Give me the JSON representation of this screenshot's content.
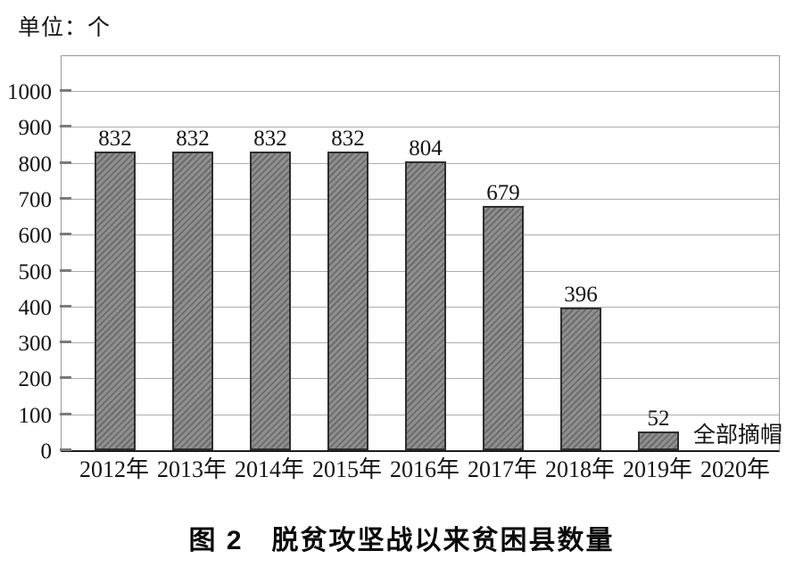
{
  "unit_label": "单位：个",
  "caption": "图 2　脱贫攻坚战以来贫困县数量",
  "chart_data": {
    "type": "bar",
    "title": "图 2　脱贫攻坚战以来贫困县数量",
    "unit_label": "单位：个",
    "categories": [
      "2012年",
      "2013年",
      "2014年",
      "2015年",
      "2016年",
      "2017年",
      "2018年",
      "2019年",
      "2020年"
    ],
    "values": [
      832,
      832,
      832,
      832,
      804,
      679,
      396,
      52,
      0
    ],
    "data_labels": [
      "832",
      "832",
      "832",
      "832",
      "804",
      "679",
      "396",
      "52",
      ""
    ],
    "annotations": [
      {
        "category_index": 8,
        "text": "全部摘帽"
      }
    ],
    "xlabel": "",
    "ylabel": "",
    "ylim": [
      0,
      1100
    ],
    "ytick_step": 100,
    "ytick_labels": [
      "0",
      "100",
      "200",
      "300",
      "400",
      "500",
      "600",
      "700",
      "800",
      "900",
      "1000"
    ],
    "grid": true,
    "legend": "none",
    "colors": {
      "bar_fill": "#8f8f8f",
      "bar_hatch": "#6c6c6c",
      "bar_border": "#2e2e2e",
      "gridline": "#adadad",
      "frame": "#9a9a9a",
      "axis": "#1c1c1c",
      "tick": "#7a7a7a",
      "text": "#141414"
    }
  }
}
